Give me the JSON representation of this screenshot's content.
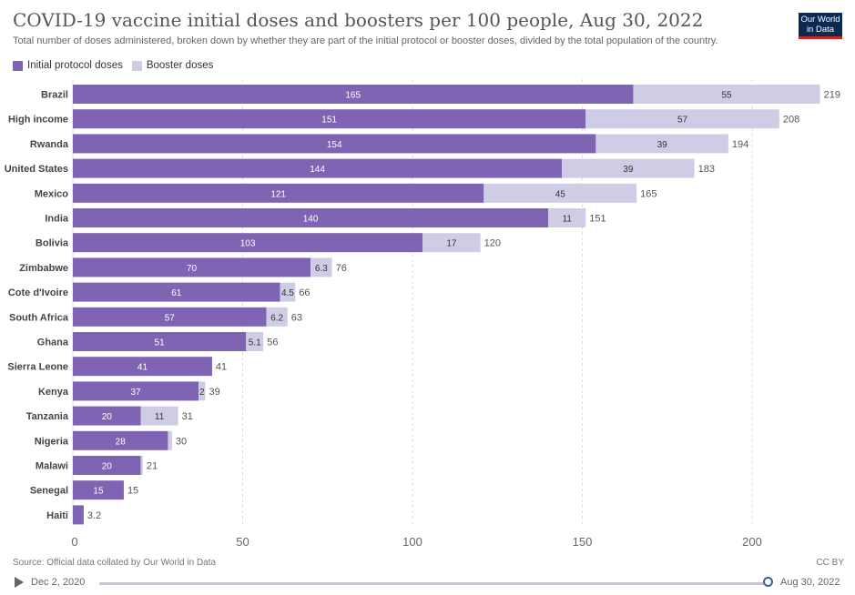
{
  "header": {
    "title": "COVID-19 vaccine initial doses and boosters per 100 people, Aug 30, 2022",
    "subtitle": "Total number of doses administered, broken down by whether they are part of the initial protocol or booster doses, divided by the total population of the country.",
    "logo_line1": "Our World",
    "logo_line2": "in Data"
  },
  "legend": {
    "initial_label": "Initial protocol doses",
    "booster_label": "Booster doses"
  },
  "colors": {
    "initial": "#7e64b3",
    "booster": "#cfcde6",
    "grid": "#dddddd"
  },
  "chart_data": {
    "type": "bar",
    "orientation": "horizontal",
    "stacked": true,
    "categories": [
      "Brazil",
      "High income",
      "Rwanda",
      "United States",
      "Mexico",
      "India",
      "Bolivia",
      "Zimbabwe",
      "Cote d'Ivoire",
      "South Africa",
      "Ghana",
      "Sierra Leone",
      "Kenya",
      "Tanzania",
      "Nigeria",
      "Malawi",
      "Senegal",
      "Haiti"
    ],
    "series": [
      {
        "name": "Initial protocol doses",
        "values": [
          165,
          151,
          154,
          144,
          121,
          140,
          103,
          70,
          61,
          57,
          51,
          41,
          37,
          20,
          28,
          20,
          15,
          3.2
        ],
        "labels": [
          "165",
          "151",
          "154",
          "144",
          "121",
          "140",
          "103",
          "70",
          "61",
          "57",
          "51",
          "41",
          "37",
          "20",
          "28",
          "20",
          "15",
          ""
        ]
      },
      {
        "name": "Booster doses",
        "values": [
          55,
          57,
          39,
          39,
          45,
          11,
          17,
          6.3,
          4.5,
          6.2,
          5.1,
          0,
          2,
          11,
          1.2,
          0.6,
          0,
          0
        ],
        "labels": [
          "55",
          "57",
          "39",
          "39",
          "45",
          "11",
          "17",
          "6.3",
          "4.5",
          "6.2",
          "5.1",
          "",
          "2",
          "11",
          "",
          "",
          "",
          ""
        ]
      }
    ],
    "totals": [
      "219",
      "208",
      "194",
      "183",
      "165",
      "151",
      "120",
      "76",
      "66",
      "63",
      "56",
      "41",
      "39",
      "31",
      "30",
      "21",
      "15",
      "3.2"
    ],
    "xticks": [
      0,
      50,
      100,
      150,
      200
    ],
    "xlim": [
      0,
      220
    ],
    "title": "COVID-19 vaccine initial doses and boosters per 100 people, Aug 30, 2022",
    "xlabel": "",
    "ylabel": ""
  },
  "footer": {
    "source": "Source: Official data collated by Our World in Data",
    "license": "CC BY"
  },
  "timeline": {
    "start_label": "Dec 2, 2020",
    "end_label": "Aug 30, 2022"
  }
}
